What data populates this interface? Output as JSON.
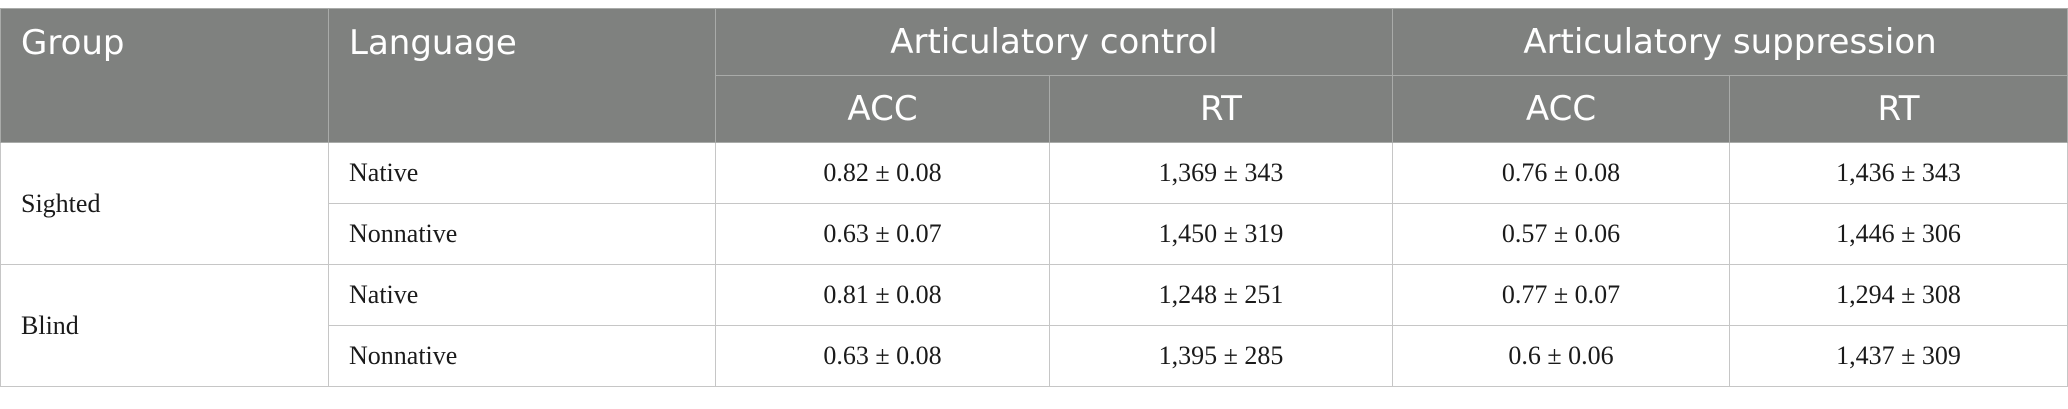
{
  "table": {
    "headers": {
      "group": "Group",
      "language": "Language",
      "articulatory_control": "Articulatory control",
      "articulatory_suppression": "Articulatory suppression",
      "acc": "ACC",
      "rt": "RT"
    },
    "groups": [
      {
        "name": "Sighted",
        "rows": [
          {
            "language": "Native",
            "ctrl_acc": "0.82 ± 0.08",
            "ctrl_rt": "1,369 ± 343",
            "sup_acc": "0.76 ± 0.08",
            "sup_rt": "1,436 ± 343"
          },
          {
            "language": "Nonnative",
            "ctrl_acc": "0.63 ± 0.07",
            "ctrl_rt": "1,450 ± 319",
            "sup_acc": "0.57 ± 0.06",
            "sup_rt": "1,446 ± 306"
          }
        ]
      },
      {
        "name": "Blind",
        "rows": [
          {
            "language": "Native",
            "ctrl_acc": "0.81 ± 0.08",
            "ctrl_rt": "1,248 ± 251",
            "sup_acc": "0.77 ± 0.07",
            "sup_rt": "1,294 ± 308"
          },
          {
            "language": "Nonnative",
            "ctrl_acc": "0.63 ± 0.08",
            "ctrl_rt": "1,395 ± 285",
            "sup_acc": "0.6 ± 0.06",
            "sup_rt": "1,437 ± 309"
          }
        ]
      }
    ]
  }
}
